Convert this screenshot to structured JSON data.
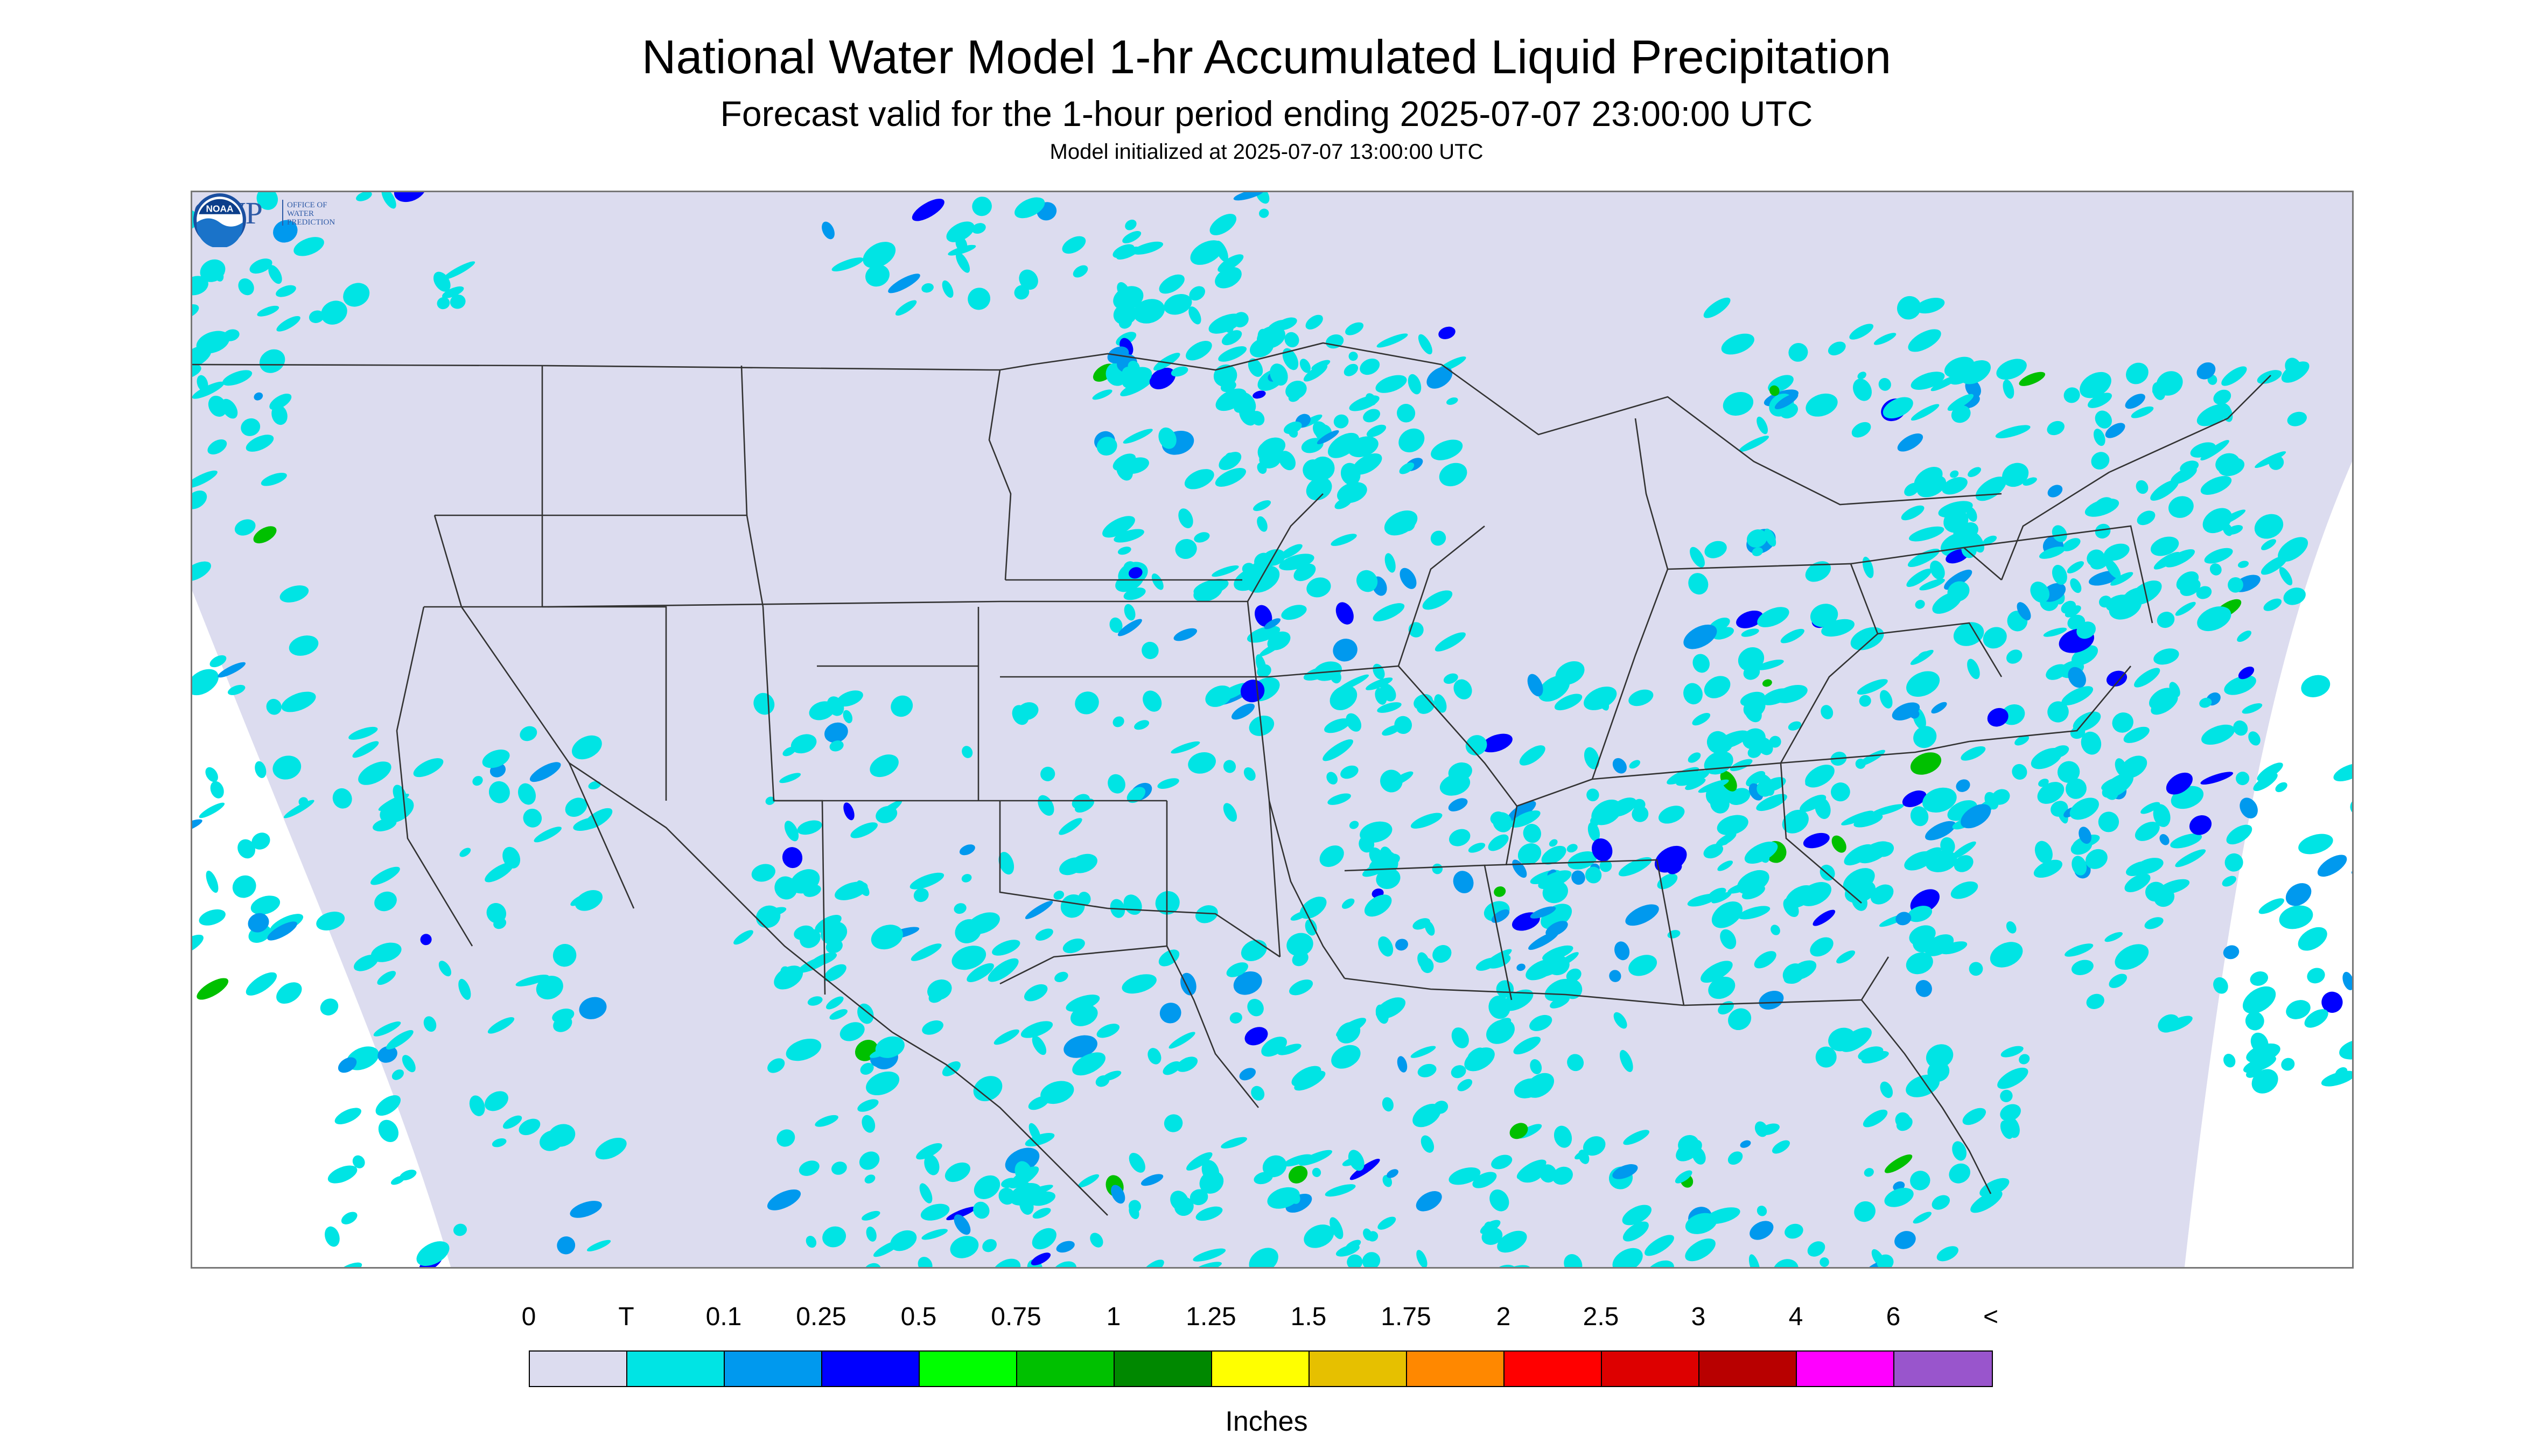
{
  "header": {
    "title": "National Water Model 1-hr Accumulated Liquid Precipitation",
    "subtitle": "Forecast valid for the 1-hour period ending 2025-07-07 23:00:00 UTC",
    "init": "Model initialized at 2025-07-07 13:00:00 UTC"
  },
  "map": {
    "background_color": "#dcdcef",
    "outside_color": "#ffffff",
    "boundary_color": "#333333",
    "precip_light_color": "#00e4e4",
    "precip_medium_color": "#0099ee",
    "precip_heavy_color": "#0000ff",
    "precip_green_color": "#00c000"
  },
  "logos": {
    "owp_text": "OWP",
    "owp_sub_1": "OFFICE OF",
    "owp_sub_2": "WATER",
    "owp_sub_3": "PREDICTION",
    "noaa_text": "NOAA"
  },
  "legend": {
    "labels": [
      "0",
      "T",
      "0.1",
      "0.25",
      "0.5",
      "0.75",
      "1",
      "1.25",
      "1.5",
      "1.75",
      "2",
      "2.5",
      "3",
      "4",
      "6",
      "<"
    ],
    "colors": [
      "#dcdcef",
      "#00e4e4",
      "#0099ee",
      "#0000ff",
      "#00ff00",
      "#00c000",
      "#008800",
      "#ffff00",
      "#e6c000",
      "#ff8800",
      "#ff0000",
      "#dd0000",
      "#b80000",
      "#ff00ff",
      "#9955cc"
    ],
    "units": "Inches"
  }
}
